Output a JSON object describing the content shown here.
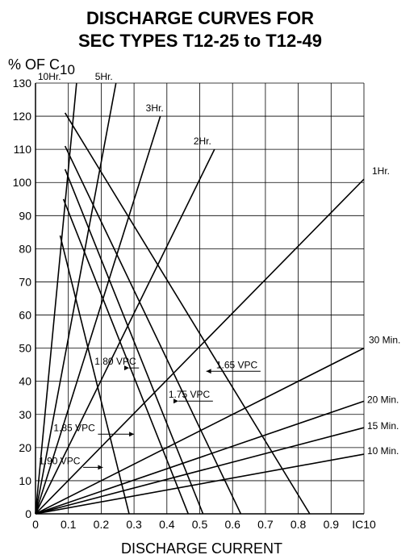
{
  "chart_data": {
    "type": "line",
    "title_lines": [
      "DISCHARGE  CURVES  FOR",
      "SEC TYPES T12-25 to T12-49"
    ],
    "ylabel_main": "% OF C",
    "ylabel_sub": "10",
    "xlabel": "DISCHARGE CURRENT",
    "xlim": [
      0,
      1.0
    ],
    "ylim": [
      0,
      130
    ],
    "grid": true,
    "x_ticks": [
      0,
      0.1,
      0.2,
      0.3,
      0.4,
      0.5,
      0.6,
      0.7,
      0.8,
      0.9,
      1.0
    ],
    "x_tick_labels": [
      "0",
      "0.1",
      "0.2",
      "0.3",
      "0.4",
      "0.5",
      "0.6",
      "0.7",
      "0.8",
      "0.9",
      "IC10"
    ],
    "y_ticks": [
      0,
      10,
      20,
      30,
      40,
      50,
      60,
      70,
      80,
      90,
      100,
      110,
      120,
      130
    ],
    "y_tick_labels": [
      "0",
      "10",
      "20",
      "30",
      "40",
      "50",
      "60",
      "70",
      "80",
      "90",
      "100",
      "110",
      "120",
      "130"
    ],
    "rate_series": [
      {
        "name": "10Hr.",
        "points": [
          [
            0,
            0
          ],
          [
            0.125,
            130
          ]
        ]
      },
      {
        "name": "5Hr.",
        "points": [
          [
            0,
            0
          ],
          [
            0.245,
            130
          ]
        ]
      },
      {
        "name": "3Hr.",
        "points": [
          [
            0,
            0
          ],
          [
            0.38,
            120
          ]
        ]
      },
      {
        "name": "2Hr.",
        "points": [
          [
            0,
            0
          ],
          [
            0.545,
            110
          ]
        ]
      },
      {
        "name": "1Hr.",
        "points": [
          [
            0,
            0
          ],
          [
            1.0,
            101
          ]
        ]
      },
      {
        "name": "30 Min.",
        "points": [
          [
            0,
            0
          ],
          [
            1.0,
            50
          ]
        ]
      },
      {
        "name": "20 Min.",
        "points": [
          [
            0,
            0
          ],
          [
            1.0,
            34
          ]
        ]
      },
      {
        "name": "15 Min.",
        "points": [
          [
            0,
            0
          ],
          [
            1.0,
            26
          ]
        ]
      },
      {
        "name": "10 Min.",
        "points": [
          [
            0,
            0
          ],
          [
            1.0,
            18
          ]
        ]
      }
    ],
    "vpc_series": [
      {
        "name": "1.65 VPC",
        "points": [
          [
            0.09,
            121
          ],
          [
            0.835,
            0
          ]
        ]
      },
      {
        "name": "1.75 VPC",
        "points": [
          [
            0.09,
            111
          ],
          [
            0.625,
            0
          ]
        ]
      },
      {
        "name": "1.80 VPC",
        "points": [
          [
            0.09,
            104
          ],
          [
            0.51,
            0
          ]
        ]
      },
      {
        "name": "1.85 VPC",
        "points": [
          [
            0.085,
            95
          ],
          [
            0.465,
            0
          ]
        ]
      },
      {
        "name": "1.90 VPC",
        "points": [
          [
            0.075,
            84
          ],
          [
            0.285,
            0
          ]
        ]
      }
    ],
    "vpc_annotations": [
      {
        "text": "1.65 VPC",
        "at": [
          0.55,
          44
        ],
        "arrow_to": [
          0.52,
          41.5
        ]
      },
      {
        "text": "1.75 VPC",
        "at": [
          0.405,
          35
        ],
        "arrow_to": [
          0.435,
          32
        ]
      },
      {
        "text": "1.80 VPC",
        "at": [
          0.18,
          45
        ],
        "arrow_to": [
          0.285,
          42
        ]
      },
      {
        "text": "1.85 VPC",
        "at": [
          0.055,
          25
        ],
        "arrow_to": [
          0.3,
          23
        ]
      },
      {
        "text": "1.90 VPC",
        "at": [
          0.01,
          15
        ],
        "arrow_to": [
          0.205,
          17.5
        ]
      }
    ]
  }
}
